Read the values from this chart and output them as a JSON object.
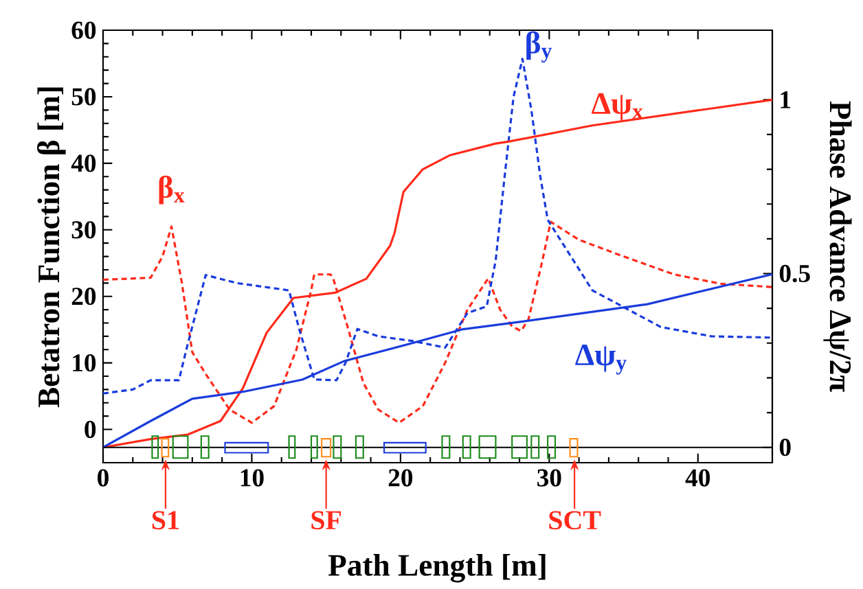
{
  "chart_data": {
    "type": "line",
    "xlabel": "Path Length [m]",
    "ylabel": "Betatron Function β [m]",
    "y2label": "Phase Advance Δψ/2π",
    "xlim": [
      0,
      45
    ],
    "xticks": [
      0,
      10,
      20,
      30,
      40
    ],
    "ylim": [
      -5,
      60
    ],
    "yticks": [
      0,
      10,
      20,
      30,
      40,
      50,
      60
    ],
    "y2lim": [
      -0.044,
      1.2
    ],
    "y2ticks": [
      0,
      0.5,
      1
    ],
    "grid": false,
    "marker": "none",
    "series": [
      {
        "name": "β$_{x}$",
        "color": "#ff2a1a",
        "line_style": "dashed",
        "x": [
          0,
          3.2,
          4,
          4.6,
          5.3,
          6.0,
          7,
          8.5,
          10,
          11.5,
          13,
          14,
          14.2,
          15.3,
          15.5,
          16.5,
          17.5,
          18.5,
          19.9,
          21.5,
          23,
          24.5,
          25.9,
          26.7,
          27.5,
          28.1,
          28.6,
          29.5,
          30.1,
          32,
          35,
          38.4,
          41.5,
          45
        ],
        "values": [
          22.5,
          22.8,
          26,
          30.5,
          22,
          11.6,
          8,
          3,
          1,
          3.5,
          12,
          21,
          23.3,
          23.3,
          22.5,
          15,
          7,
          3,
          1,
          3.5,
          10,
          18,
          22.7,
          18,
          15.5,
          14.8,
          16.5,
          25,
          31.2,
          28.5,
          26,
          23.3,
          21.9,
          21.4
        ]
      },
      {
        "name": "β$_{y}$",
        "color": "#1a3cdc",
        "line_style": "dashed",
        "x": [
          0,
          2,
          3.2,
          5.1,
          5.6,
          6.9,
          9,
          12.5,
          13.2,
          14.2,
          15.7,
          16.3,
          17.1,
          18.5,
          20.8,
          23.0,
          24.5,
          25.8,
          26.4,
          27,
          27.6,
          28.2,
          28.8,
          29.4,
          29.9,
          32.9,
          37.5,
          40.9,
          45
        ],
        "values": [
          5.4,
          6,
          7.4,
          7.4,
          12,
          23.2,
          22,
          20.9,
          15,
          7.5,
          7.4,
          10,
          15.1,
          14,
          13.3,
          12.3,
          17.5,
          18.5,
          25.4,
          38,
          50,
          55.7,
          48,
          38,
          31.5,
          20.9,
          15.4,
          14,
          13.8
        ]
      },
      {
        "name": "Δψ$_{x}$",
        "color": "#ff2a1a",
        "line_style": "solid",
        "axis": "y2",
        "x": [
          0,
          3.2,
          5.7,
          7.9,
          9.4,
          11,
          12.8,
          15.6,
          17.7,
          19.3,
          19.6,
          20.2,
          21.5,
          23.3,
          26.4,
          27.3,
          32.9,
          45
        ],
        "values": [
          0,
          0.024,
          0.037,
          0.076,
          0.17,
          0.33,
          0.43,
          0.445,
          0.485,
          0.58,
          0.617,
          0.735,
          0.8,
          0.84,
          0.874,
          0.88,
          0.926,
          1.0
        ]
      },
      {
        "name": "Δψ$_{y}$",
        "color": "#1a3cdc",
        "line_style": "solid",
        "axis": "y2",
        "x": [
          0,
          3.2,
          6,
          9.4,
          13.4,
          16.2,
          20.8,
          24.2,
          28.2,
          36.6,
          45
        ],
        "values": [
          0,
          0.076,
          0.14,
          0.16,
          0.195,
          0.248,
          0.3,
          0.34,
          0.362,
          0.412,
          0.498
        ]
      }
    ],
    "ref_lines": [
      {
        "axis": "y2",
        "value": 0,
        "color": "#000000"
      }
    ],
    "annotations": [
      "S1",
      "SF",
      "SCT"
    ]
  }
}
